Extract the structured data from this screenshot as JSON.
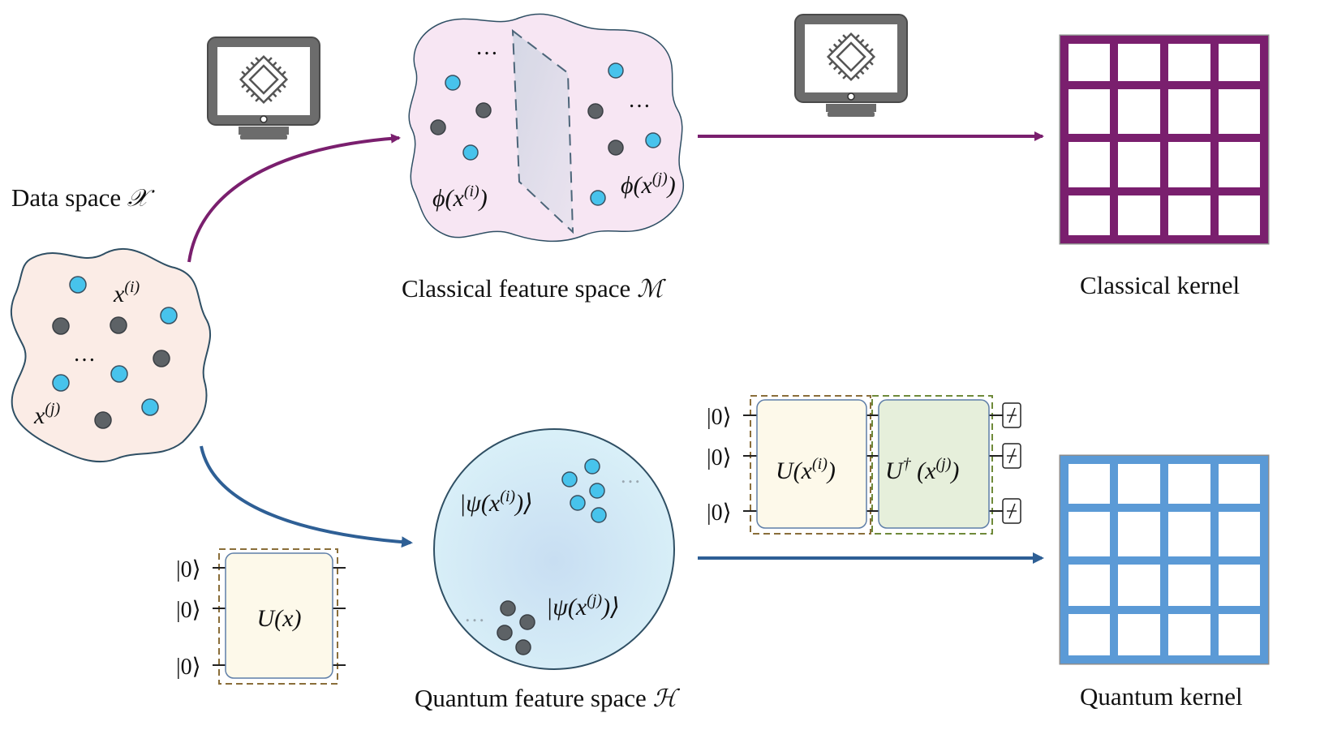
{
  "labels": {
    "data_space": "Data space",
    "data_space_symbol": "𝒳",
    "classical_feature_space": "Classical feature space",
    "classical_feature_space_symbol": "ℳ",
    "classical_kernel": "Classical kernel",
    "quantum_feature_space": "Quantum feature space",
    "quantum_feature_space_symbol": "ℋ",
    "quantum_kernel": "Quantum kernel"
  },
  "data_space": {
    "x_i": "x",
    "x_i_sup": "(i)",
    "x_j": "x",
    "x_j_sup": "(j)",
    "ellipsis": "…"
  },
  "classical_space": {
    "phi": "ϕ",
    "phi_i_arg": "(x",
    "phi_i_sup": "(i)",
    "phi_close": ")",
    "phi_j_sup": "(j)",
    "ellipsis": "…"
  },
  "quantum_space": {
    "psi_i_open": "|ψ(x",
    "psi_i_sup": "(i)",
    "psi_close": ")⟩",
    "psi_j_sup": "(j)",
    "ellipsis": "…"
  },
  "encoding_circuit": {
    "inputs": [
      "|0⟩",
      "|0⟩",
      "|0⟩"
    ],
    "gate": "U(x)"
  },
  "kernel_circuit": {
    "inputs": [
      "|0⟩",
      "|0⟩",
      "|0⟩"
    ],
    "gate1_base": "U(x",
    "gate1_sup": "(i)",
    "gate1_close": ")",
    "gate2_base": "U",
    "gate2_dagger": "†",
    "gate2_arg": "(x",
    "gate2_sup": "(j)",
    "gate2_close": ")"
  },
  "colors": {
    "classical_accent": "#7a1f6e",
    "quantum_accent": "#2e5f95",
    "quantum_grid": "#5b9ad6",
    "blue_point": "#47c3ec",
    "grey_point": "#5d6266",
    "data_blob_fill": "#fbece6",
    "classical_blob_fill": "#f7e6f3",
    "quantum_sphere_fill": "#d5ecf7",
    "gate_fill": "#fdf9ea",
    "gate2_fill": "#e6efdb"
  },
  "icons": [
    "computer-chip-icon",
    "computer-chip-icon",
    "measurement-icon"
  ]
}
